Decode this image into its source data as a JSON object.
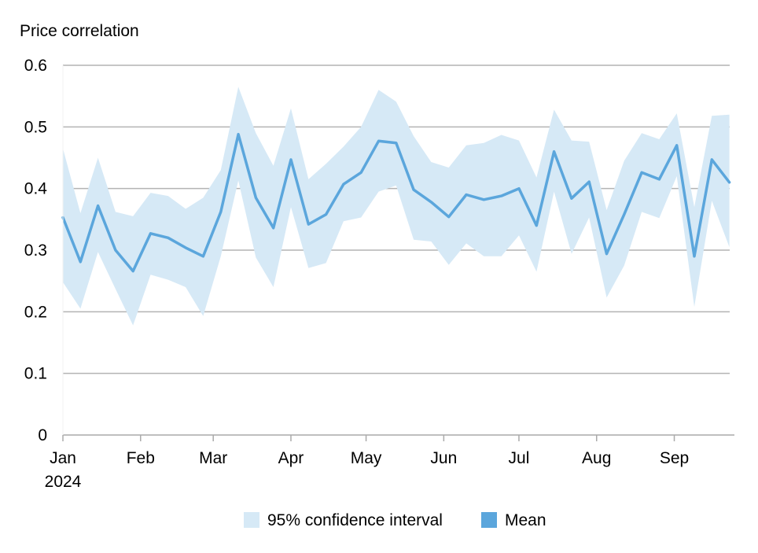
{
  "chart_data": {
    "type": "area",
    "ylabel": "Price correlation",
    "ylim": [
      0,
      0.6
    ],
    "yticks": [
      "0",
      "0.1",
      "0.2",
      "0.3",
      "0.4",
      "0.5",
      "0.6"
    ],
    "xlim": [
      "2024-01-01",
      "2024-09-25"
    ],
    "xticks": [
      {
        "date": "2024-01-01",
        "label": "Jan",
        "sublabel": "2024"
      },
      {
        "date": "2024-02-01",
        "label": "Feb"
      },
      {
        "date": "2024-03-01",
        "label": "Mar"
      },
      {
        "date": "2024-04-01",
        "label": "Apr"
      },
      {
        "date": "2024-05-01",
        "label": "May"
      },
      {
        "date": "2024-06-01",
        "label": "Jun"
      },
      {
        "date": "2024-07-01",
        "label": "Jul"
      },
      {
        "date": "2024-08-01",
        "label": "Aug"
      },
      {
        "date": "2024-09-01",
        "label": "Sep"
      }
    ],
    "grid": true,
    "legend_position": "bottom",
    "series": [
      {
        "name": "95% confidence interval",
        "kind": "band",
        "color": "#d6e9f6",
        "x": [
          "2024-01-01",
          "2024-01-08",
          "2024-01-15",
          "2024-01-22",
          "2024-01-29",
          "2024-02-05",
          "2024-02-12",
          "2024-02-19",
          "2024-02-26",
          "2024-03-04",
          "2024-03-11",
          "2024-03-18",
          "2024-03-25",
          "2024-04-01",
          "2024-04-08",
          "2024-04-15",
          "2024-04-22",
          "2024-04-29",
          "2024-05-06",
          "2024-05-13",
          "2024-05-20",
          "2024-05-27",
          "2024-06-03",
          "2024-06-10",
          "2024-06-17",
          "2024-06-24",
          "2024-07-01",
          "2024-07-08",
          "2024-07-15",
          "2024-07-22",
          "2024-07-29",
          "2024-08-05",
          "2024-08-12",
          "2024-08-19",
          "2024-08-26",
          "2024-09-02",
          "2024-09-09",
          "2024-09-16",
          "2024-09-23"
        ],
        "upper": [
          0.465,
          0.36,
          0.45,
          0.362,
          0.355,
          0.393,
          0.388,
          0.367,
          0.385,
          0.43,
          0.565,
          0.49,
          0.437,
          0.53,
          0.415,
          0.44,
          0.468,
          0.5,
          0.56,
          0.541,
          0.485,
          0.443,
          0.434,
          0.47,
          0.474,
          0.487,
          0.478,
          0.418,
          0.528,
          0.478,
          0.476,
          0.365,
          0.445,
          0.49,
          0.48,
          0.522,
          0.37,
          0.518,
          0.52
        ],
        "lower": [
          0.248,
          0.205,
          0.297,
          0.237,
          0.178,
          0.26,
          0.252,
          0.24,
          0.193,
          0.29,
          0.413,
          0.288,
          0.24,
          0.37,
          0.271,
          0.279,
          0.347,
          0.353,
          0.395,
          0.405,
          0.317,
          0.314,
          0.276,
          0.311,
          0.29,
          0.29,
          0.324,
          0.265,
          0.395,
          0.294,
          0.353,
          0.223,
          0.275,
          0.362,
          0.352,
          0.42,
          0.208,
          0.38,
          0.305
        ]
      },
      {
        "name": "Mean",
        "kind": "line",
        "color": "#5ba6dc",
        "x": [
          "2024-01-01",
          "2024-01-08",
          "2024-01-15",
          "2024-01-22",
          "2024-01-29",
          "2024-02-05",
          "2024-02-12",
          "2024-02-19",
          "2024-02-26",
          "2024-03-04",
          "2024-03-11",
          "2024-03-18",
          "2024-03-25",
          "2024-04-01",
          "2024-04-08",
          "2024-04-15",
          "2024-04-22",
          "2024-04-29",
          "2024-05-06",
          "2024-05-13",
          "2024-05-20",
          "2024-05-27",
          "2024-06-03",
          "2024-06-10",
          "2024-06-17",
          "2024-06-24",
          "2024-07-01",
          "2024-07-08",
          "2024-07-15",
          "2024-07-22",
          "2024-07-29",
          "2024-08-05",
          "2024-08-12",
          "2024-08-19",
          "2024-08-26",
          "2024-09-02",
          "2024-09-09",
          "2024-09-16",
          "2024-09-23"
        ],
        "values": [
          0.353,
          0.281,
          0.372,
          0.3,
          0.266,
          0.327,
          0.32,
          0.304,
          0.29,
          0.362,
          0.488,
          0.385,
          0.336,
          0.447,
          0.342,
          0.358,
          0.407,
          0.426,
          0.477,
          0.474,
          0.398,
          0.378,
          0.354,
          0.39,
          0.382,
          0.388,
          0.4,
          0.34,
          0.46,
          0.384,
          0.411,
          0.294,
          0.358,
          0.426,
          0.415,
          0.47,
          0.29,
          0.447,
          0.41
        ]
      }
    ]
  }
}
